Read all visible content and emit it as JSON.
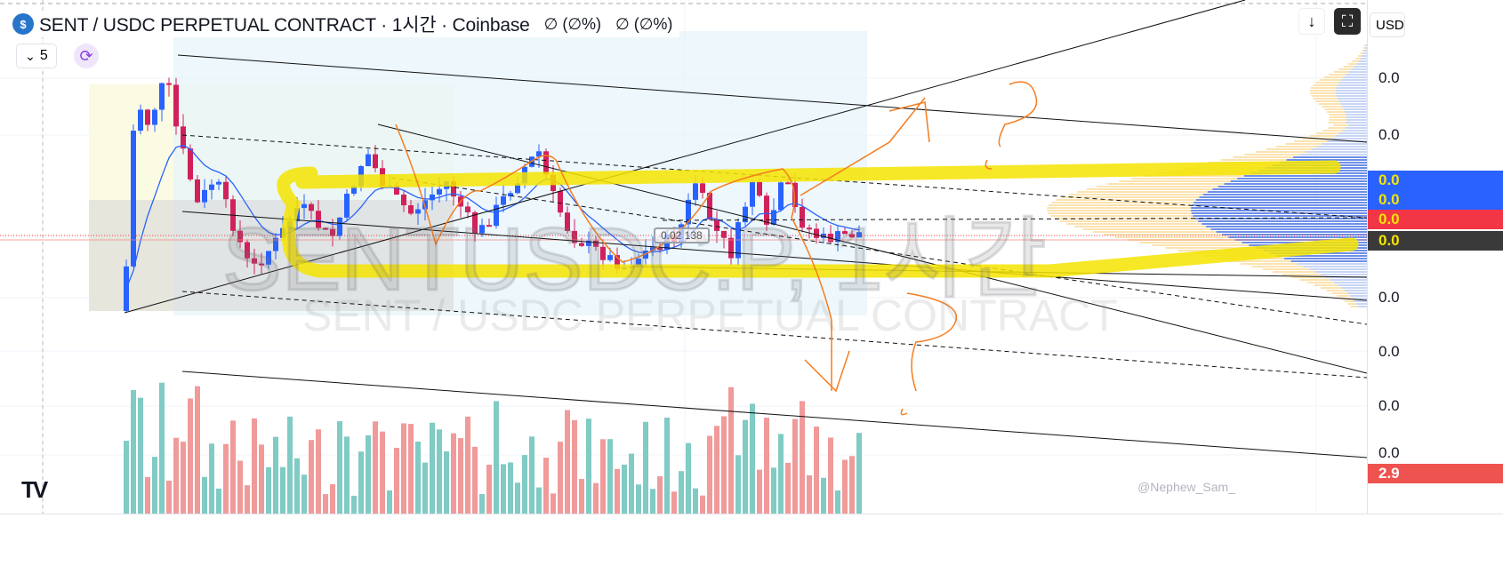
{
  "header": {
    "logo_text": "$",
    "title": "SENT / USDC PERPETUAL CONTRACT · 1시간 · Coinbase",
    "change1": "∅ (∅%)",
    "change2": "∅ (∅%)"
  },
  "indicators": {
    "collapse_label": "5",
    "chevron": "⌄",
    "sync_icon": "⟳"
  },
  "buttons": {
    "scroll_down": "↓",
    "fullscreen": "⛶"
  },
  "axis": {
    "currency": "USD",
    "labels": [
      "0.0",
      "0.0",
      "0.0",
      "0.0",
      "0.0",
      "0.0"
    ],
    "tags": [
      {
        "text": "0.0",
        "bg": "#2962ff",
        "color": "#f5e400"
      },
      {
        "text": "0.0",
        "bg": "#2962ff",
        "color": "#f5e400"
      },
      {
        "text": "0.0",
        "bg": "#f23645",
        "color": "#f5e400"
      },
      {
        "text": "0.0",
        "bg": "#3a3a3a",
        "color": "#f5e400"
      }
    ],
    "volume_tag": {
      "text": "2.9",
      "bg": "#ef5350",
      "color": "#ffffff"
    }
  },
  "watermark": {
    "symbol_big": "SENTUSDC.P, 1시간",
    "symbol_desc": "SENT / USDC PERPETUAL CONTRACT",
    "author": "@Nephew_Sam_",
    "brand": "TV"
  },
  "price_label": "0.02 138",
  "colors": {
    "up": "#2962ff",
    "down": "#d0215b",
    "ma": "#2962ff",
    "vol_up": "#80cbc4",
    "vol_down": "#f09a9a",
    "highlight": "#f5e400",
    "drawing": "#f57c1f"
  }
}
